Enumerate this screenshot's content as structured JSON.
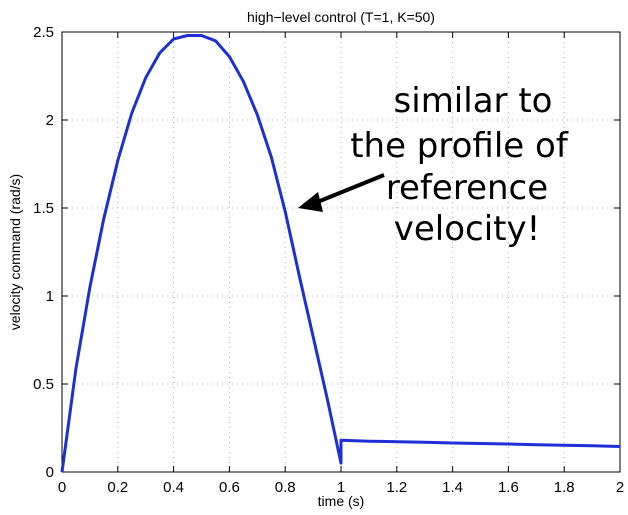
{
  "chart_data": {
    "type": "line",
    "title": "high−level control (T=1, K=50)",
    "xlabel": "time (s)",
    "ylabel": "velocity command (rad/s)",
    "xlim": [
      0,
      2
    ],
    "ylim": [
      0,
      2.5
    ],
    "xticks": [
      "0",
      "0.2",
      "0.4",
      "0.6",
      "0.8",
      "1",
      "1.2",
      "1.4",
      "1.6",
      "1.8",
      "2"
    ],
    "yticks": [
      "0",
      "0.5",
      "1",
      "1.5",
      "2",
      "2.5"
    ],
    "grid": true,
    "series_color": "#1f2fd6",
    "series": [
      {
        "x": [
          0,
          0.05,
          0.1,
          0.15,
          0.2,
          0.25,
          0.3,
          0.35,
          0.4,
          0.45,
          0.5,
          0.55,
          0.6,
          0.65,
          0.7,
          0.75,
          0.8,
          0.85,
          0.9,
          0.95,
          1.0,
          1.0,
          1.1,
          1.2,
          1.3,
          1.4,
          1.5,
          1.6,
          1.7,
          1.8,
          1.9,
          2.0
        ],
        "y": [
          0,
          0.59,
          1.05,
          1.44,
          1.77,
          2.04,
          2.24,
          2.38,
          2.46,
          2.48,
          2.48,
          2.45,
          2.36,
          2.22,
          2.03,
          1.79,
          1.48,
          1.12,
          0.77,
          0.42,
          0.05,
          0.18,
          0.175,
          0.172,
          0.169,
          0.165,
          0.162,
          0.159,
          0.155,
          0.152,
          0.149,
          0.145
        ]
      }
    ],
    "annotation": {
      "lines": [
        "similar to",
        "the profile of",
        "reference",
        "velocity!"
      ],
      "arrow_target": {
        "x": 0.835,
        "y": 1.53
      }
    }
  }
}
